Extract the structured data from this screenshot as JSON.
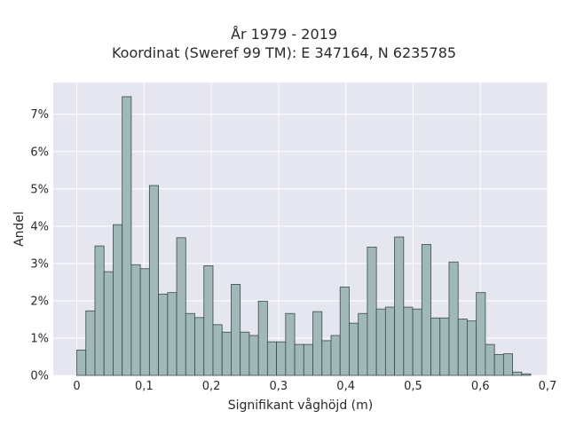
{
  "chart_data": {
    "type": "bar",
    "title": "År 1979 - 2019",
    "subtitle": "Koordinat (Sweref 99 TM): E 347164, N 6235785",
    "xlabel": "Signifikant våghöjd (m)",
    "ylabel": "Andel",
    "xlim": [
      -0.035,
      0.7
    ],
    "ylim": [
      0,
      0.0785
    ],
    "bin_width": 0.0135,
    "x_ticks": [
      0,
      0.1,
      0.2,
      0.3,
      0.4,
      0.5,
      0.6,
      0.7
    ],
    "x_tick_labels": [
      "0",
      "0,1",
      "0,2",
      "0,3",
      "0,4",
      "0,5",
      "0,6",
      "0,7"
    ],
    "y_ticks": [
      0,
      0.01,
      0.02,
      0.03,
      0.04,
      0.05,
      0.06,
      0.07
    ],
    "y_tick_labels": [
      "0%",
      "1%",
      "2%",
      "3%",
      "4%",
      "5%",
      "6%",
      "7%"
    ],
    "bin_starts": [
      0,
      0.0135,
      0.027,
      0.0405,
      0.054,
      0.0675,
      0.081,
      0.0945,
      0.108,
      0.1215,
      0.135,
      0.1485,
      0.162,
      0.1755,
      0.189,
      0.2025,
      0.216,
      0.2295,
      0.243,
      0.2565,
      0.27,
      0.2835,
      0.297,
      0.3105,
      0.324,
      0.3375,
      0.351,
      0.3645,
      0.378,
      0.3915,
      0.405,
      0.4185,
      0.432,
      0.4455,
      0.459,
      0.4725,
      0.486,
      0.4995,
      0.513,
      0.5265,
      0.54,
      0.5535,
      0.567,
      0.5805,
      0.594,
      0.6075,
      0.621,
      0.6345,
      0.648,
      0.6615
    ],
    "values": [
      0.0068,
      0.0173,
      0.0347,
      0.0278,
      0.0404,
      0.0747,
      0.0297,
      0.0286,
      0.0509,
      0.0218,
      0.0222,
      0.0369,
      0.0166,
      0.0155,
      0.0294,
      0.0136,
      0.0116,
      0.0244,
      0.0116,
      0.0107,
      0.0199,
      0.009,
      0.009,
      0.0166,
      0.0083,
      0.0083,
      0.0171,
      0.0093,
      0.0107,
      0.0237,
      0.014,
      0.0166,
      0.0344,
      0.0178,
      0.0183,
      0.0371,
      0.0183,
      0.0178,
      0.0351,
      0.0154,
      0.0154,
      0.0304,
      0.0151,
      0.0146,
      0.0222,
      0.0083,
      0.0056,
      0.0058,
      0.0009,
      0.0004
    ],
    "grid": true,
    "colors": {
      "plot_background": "#e5e6ef",
      "grid": "#ffffff",
      "bar_fill": "#a0b8b8",
      "bar_edge": "#3a4a4a"
    }
  }
}
